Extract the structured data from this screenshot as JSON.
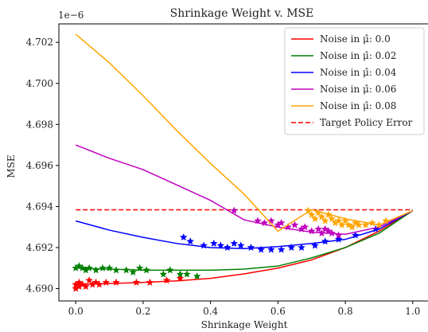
{
  "chart_data": {
    "type": "line",
    "title": "Shrinkage Weight v. MSE",
    "xlabel": "Shrinkage Weight",
    "ylabel": "MSE",
    "y_offset_label": "1e−6",
    "xlim": [
      -0.05,
      1.05
    ],
    "ylim": [
      4.6894,
      4.7029
    ],
    "x_ticks": [
      0.0,
      0.2,
      0.4,
      0.6,
      0.8,
      1.0
    ],
    "x_tick_labels": [
      "0.0",
      "0.2",
      "0.4",
      "0.6",
      "0.8",
      "1.0"
    ],
    "y_ticks": [
      4.69,
      4.692,
      4.694,
      4.696,
      4.698,
      4.7,
      4.702
    ],
    "y_tick_labels": [
      "4.690",
      "4.692",
      "4.694",
      "4.696",
      "4.698",
      "4.700",
      "4.702"
    ],
    "grid": false,
    "legend_position": "top-right",
    "x": [
      0.0,
      0.1,
      0.2,
      0.3,
      0.4,
      0.5,
      0.6,
      0.7,
      0.8,
      0.9,
      1.0
    ],
    "series": [
      {
        "name": "Noise in μ̂: 0.0",
        "color": "#ff0000",
        "values": [
          4.6902,
          4.69025,
          4.6903,
          4.69038,
          4.6905,
          4.69072,
          4.691,
          4.6914,
          4.692,
          4.6928,
          4.6938
        ],
        "markers": [
          [
            0.0,
            4.69
          ],
          [
            0.0,
            4.6902
          ],
          [
            0.01,
            4.6901
          ],
          [
            0.01,
            4.6903
          ],
          [
            0.02,
            4.6902
          ],
          [
            0.03,
            4.6901
          ],
          [
            0.04,
            4.6904
          ],
          [
            0.05,
            4.6902
          ],
          [
            0.06,
            4.6903
          ],
          [
            0.07,
            4.6902
          ],
          [
            0.09,
            4.6903
          ],
          [
            0.12,
            4.6903
          ],
          [
            0.18,
            4.6903
          ],
          [
            0.22,
            4.6903
          ],
          [
            0.27,
            4.6904
          ],
          [
            0.31,
            4.6905
          ]
        ]
      },
      {
        "name": "Noise in μ̂: 0.02",
        "color": "#008000",
        "values": [
          4.691,
          4.69095,
          4.6909,
          4.6909,
          4.6909,
          4.69095,
          4.6911,
          4.6915,
          4.692,
          4.6927,
          4.6938
        ],
        "markers": [
          [
            0.0,
            4.691
          ],
          [
            0.01,
            4.6911
          ],
          [
            0.02,
            4.691
          ],
          [
            0.03,
            4.6909
          ],
          [
            0.04,
            4.691
          ],
          [
            0.06,
            4.6909
          ],
          [
            0.08,
            4.691
          ],
          [
            0.1,
            4.691
          ],
          [
            0.12,
            4.6909
          ],
          [
            0.15,
            4.6909
          ],
          [
            0.17,
            4.6908
          ],
          [
            0.19,
            4.691
          ],
          [
            0.21,
            4.6909
          ],
          [
            0.26,
            4.6907
          ],
          [
            0.28,
            4.6909
          ],
          [
            0.31,
            4.6907
          ],
          [
            0.33,
            4.6907
          ],
          [
            0.36,
            4.6906
          ]
        ]
      },
      {
        "name": "Noise in μ̂: 0.04",
        "color": "#0000ff",
        "values": [
          4.6933,
          4.69285,
          4.6925,
          4.6922,
          4.692,
          4.69195,
          4.69205,
          4.6922,
          4.6924,
          4.6929,
          4.6938
        ],
        "markers": [
          [
            0.32,
            4.6925
          ],
          [
            0.34,
            4.6923
          ],
          [
            0.38,
            4.6921
          ],
          [
            0.41,
            4.6922
          ],
          [
            0.43,
            4.6921
          ],
          [
            0.45,
            4.692
          ],
          [
            0.47,
            4.6922
          ],
          [
            0.49,
            4.6921
          ],
          [
            0.52,
            4.692
          ],
          [
            0.55,
            4.6919
          ],
          [
            0.58,
            4.6919
          ],
          [
            0.61,
            4.6919
          ],
          [
            0.64,
            4.692
          ],
          [
            0.67,
            4.692
          ],
          [
            0.71,
            4.6921
          ],
          [
            0.74,
            4.6923
          ],
          [
            0.78,
            4.6924
          ],
          [
            0.83,
            4.6926
          ],
          [
            0.89,
            4.6929
          ]
        ]
      },
      {
        "name": "Noise in μ̂: 0.06",
        "color": "#bf00bf",
        "values": [
          4.697,
          4.69635,
          4.6958,
          4.69505,
          4.6943,
          4.69335,
          4.693,
          4.69275,
          4.69265,
          4.693,
          4.6938
        ],
        "markers": [
          [
            0.47,
            4.6938
          ],
          [
            0.54,
            4.6933
          ],
          [
            0.56,
            4.6932
          ],
          [
            0.58,
            4.6933
          ],
          [
            0.6,
            4.6931
          ],
          [
            0.61,
            4.6932
          ],
          [
            0.63,
            4.693
          ],
          [
            0.65,
            4.6931
          ],
          [
            0.67,
            4.6929
          ],
          [
            0.68,
            4.693
          ],
          [
            0.7,
            4.6928
          ],
          [
            0.72,
            4.6929
          ],
          [
            0.73,
            4.6927
          ],
          [
            0.74,
            4.6929
          ],
          [
            0.75,
            4.6928
          ],
          [
            0.76,
            4.6927
          ],
          [
            0.78,
            4.6926
          ]
        ]
      },
      {
        "name": "Noise in μ̂: 0.08",
        "color": "#ffa500",
        "values": [
          4.7024,
          4.701,
          4.6994,
          4.6977,
          4.6961,
          4.6946,
          4.6928,
          4.69385,
          4.6934,
          4.6931,
          4.6938
        ],
        "markers": [
          [
            0.69,
            4.6938
          ],
          [
            0.7,
            4.6936
          ],
          [
            0.71,
            4.6934
          ],
          [
            0.72,
            4.6937
          ],
          [
            0.73,
            4.6935
          ],
          [
            0.74,
            4.6933
          ],
          [
            0.75,
            4.6936
          ],
          [
            0.76,
            4.6934
          ],
          [
            0.77,
            4.6932
          ],
          [
            0.78,
            4.6933
          ],
          [
            0.79,
            4.6931
          ],
          [
            0.8,
            4.6933
          ],
          [
            0.81,
            4.6931
          ],
          [
            0.82,
            4.693
          ],
          [
            0.83,
            4.6932
          ],
          [
            0.84,
            4.6931
          ],
          [
            0.86,
            4.6931
          ],
          [
            0.88,
            4.6932
          ],
          [
            0.9,
            4.6931
          ],
          [
            0.92,
            4.6933
          ]
        ]
      }
    ],
    "reference_line": {
      "name": "Target Policy Error",
      "color": "#ff0000",
      "style": "dashed",
      "y": 4.69384
    }
  }
}
